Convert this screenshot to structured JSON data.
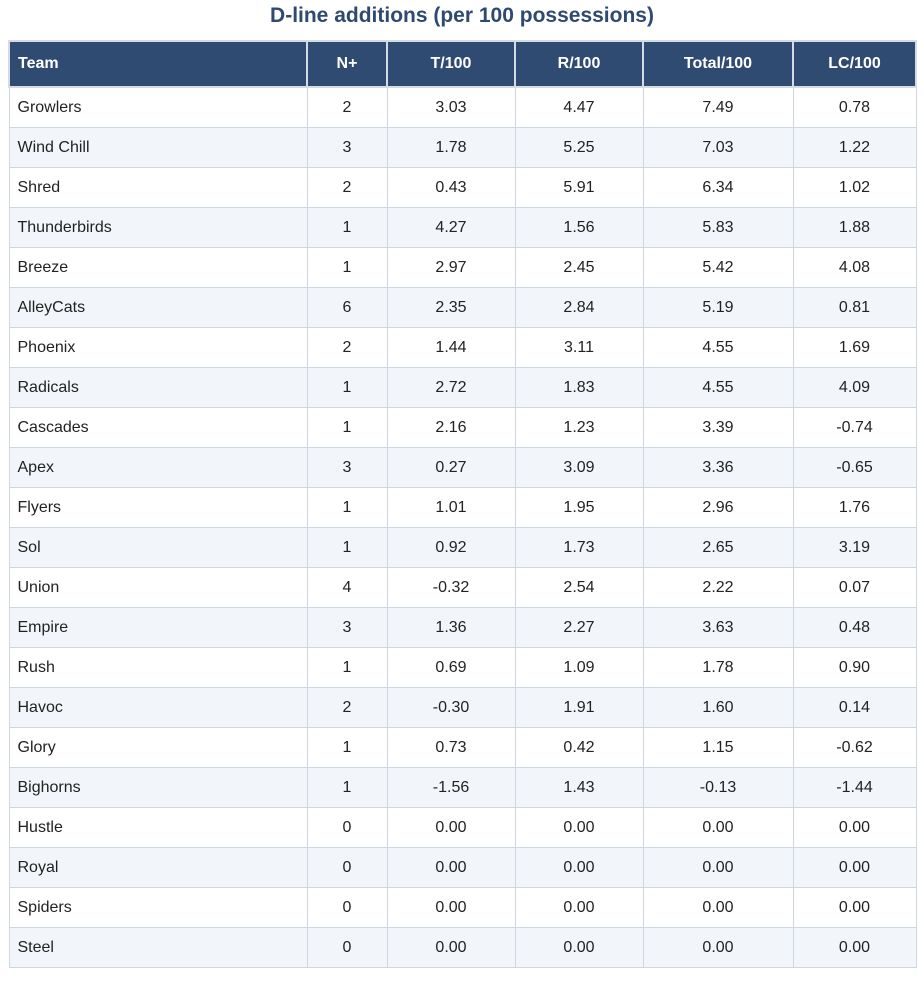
{
  "title": "D-line additions (per 100 possessions)",
  "chart_data": {
    "type": "table",
    "title": "D-line additions (per 100 possessions)",
    "columns": [
      "Team",
      "N+",
      "T/100",
      "R/100",
      "Total/100",
      "LC/100"
    ],
    "rows": [
      [
        "Growlers",
        "2",
        "3.03",
        "4.47",
        "7.49",
        "0.78"
      ],
      [
        "Wind Chill",
        "3",
        "1.78",
        "5.25",
        "7.03",
        "1.22"
      ],
      [
        "Shred",
        "2",
        "0.43",
        "5.91",
        "6.34",
        "1.02"
      ],
      [
        "Thunderbirds",
        "1",
        "4.27",
        "1.56",
        "5.83",
        "1.88"
      ],
      [
        "Breeze",
        "1",
        "2.97",
        "2.45",
        "5.42",
        "4.08"
      ],
      [
        "AlleyCats",
        "6",
        "2.35",
        "2.84",
        "5.19",
        "0.81"
      ],
      [
        "Phoenix",
        "2",
        "1.44",
        "3.11",
        "4.55",
        "1.69"
      ],
      [
        "Radicals",
        "1",
        "2.72",
        "1.83",
        "4.55",
        "4.09"
      ],
      [
        "Cascades",
        "1",
        "2.16",
        "1.23",
        "3.39",
        "-0.74"
      ],
      [
        "Apex",
        "3",
        "0.27",
        "3.09",
        "3.36",
        "-0.65"
      ],
      [
        "Flyers",
        "1",
        "1.01",
        "1.95",
        "2.96",
        "1.76"
      ],
      [
        "Sol",
        "1",
        "0.92",
        "1.73",
        "2.65",
        "3.19"
      ],
      [
        "Union",
        "4",
        "-0.32",
        "2.54",
        "2.22",
        "0.07"
      ],
      [
        "Empire",
        "3",
        "1.36",
        "2.27",
        "3.63",
        "0.48"
      ],
      [
        "Rush",
        "1",
        "0.69",
        "1.09",
        "1.78",
        "0.90"
      ],
      [
        "Havoc",
        "2",
        "-0.30",
        "1.91",
        "1.60",
        "0.14"
      ],
      [
        "Glory",
        "1",
        "0.73",
        "0.42",
        "1.15",
        "-0.62"
      ],
      [
        "Bighorns",
        "1",
        "-1.56",
        "1.43",
        "-0.13",
        "-1.44"
      ],
      [
        "Hustle",
        "0",
        "0.00",
        "0.00",
        "0.00",
        "0.00"
      ],
      [
        "Royal",
        "0",
        "0.00",
        "0.00",
        "0.00",
        "0.00"
      ],
      [
        "Spiders",
        "0",
        "0.00",
        "0.00",
        "0.00",
        "0.00"
      ],
      [
        "Steel",
        "0",
        "0.00",
        "0.00",
        "0.00",
        "0.00"
      ]
    ],
    "colors": {
      "header_background": "#2f4b72",
      "header_text": "#ffffff",
      "title_text": "#2e4a6f",
      "row_alt_background": "#f2f5f9",
      "grid_line": "#ccd5e0"
    }
  }
}
